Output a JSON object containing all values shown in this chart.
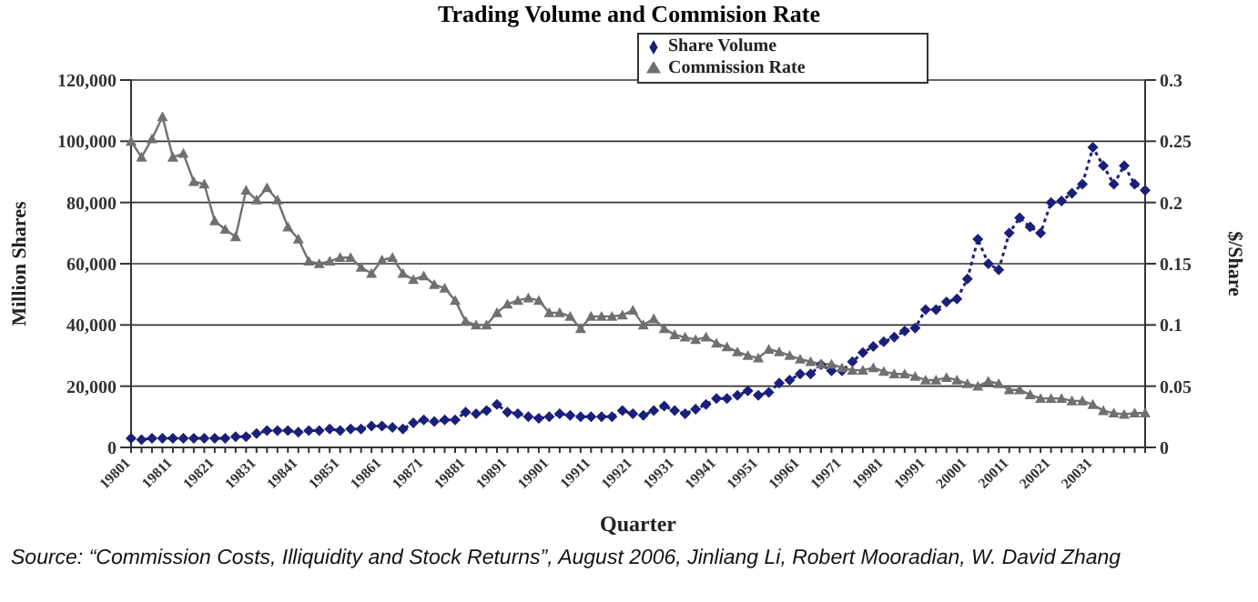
{
  "chart_data": {
    "type": "line",
    "title": "Trading Volume and Commision Rate",
    "xlabel": "Quarter",
    "ylabel": "Million Shares",
    "y2label": "$/Share",
    "categories": [
      "19801",
      null,
      null,
      null,
      "19811",
      null,
      null,
      null,
      "19821",
      null,
      null,
      null,
      "19831",
      null,
      null,
      null,
      "19841",
      null,
      null,
      null,
      "19851",
      null,
      null,
      null,
      "19861",
      null,
      null,
      null,
      "19871",
      null,
      null,
      null,
      "19881",
      null,
      null,
      null,
      "19891",
      null,
      null,
      null,
      "19901",
      null,
      null,
      null,
      "19911",
      null,
      null,
      null,
      "19921",
      null,
      null,
      null,
      "19931",
      null,
      null,
      null,
      "19941",
      null,
      null,
      null,
      "19951",
      null,
      null,
      null,
      "19961",
      null,
      null,
      null,
      "19971",
      null,
      null,
      null,
      "19981",
      null,
      null,
      null,
      "19991",
      null,
      null,
      null,
      "20001",
      null,
      null,
      null,
      "20011",
      null,
      null,
      null,
      "20021",
      null,
      null,
      null,
      "20031",
      null,
      null,
      null,
      null,
      null
    ],
    "series": [
      {
        "name": "Share Volume",
        "color": "#1a1f7a",
        "marker": "diamond",
        "line_style": "dotted",
        "values": [
          3000,
          2500,
          3000,
          3000,
          3000,
          3000,
          3000,
          3000,
          3000,
          3000,
          3500,
          3500,
          4500,
          5500,
          5500,
          5500,
          5000,
          5500,
          5500,
          6000,
          5500,
          6000,
          6000,
          7000,
          7000,
          6500,
          6000,
          8000,
          9000,
          8500,
          9000,
          9000,
          11500,
          11000,
          12000,
          14000,
          11500,
          11000,
          10000,
          9500,
          10000,
          11000,
          10500,
          10000,
          10000,
          10000,
          10000,
          12000,
          11000,
          10500,
          12000,
          13500,
          12000,
          11000,
          12500,
          14000,
          16000,
          16000,
          17000,
          18500,
          17000,
          18000,
          21000,
          22000,
          24000,
          24000,
          27000,
          25000,
          25000,
          28000,
          31000,
          33000,
          34500,
          36000,
          38000,
          39000,
          45000,
          45000,
          47500,
          48500,
          55000,
          68000,
          60000,
          58000,
          70000,
          75000,
          72000,
          70000,
          80000,
          80500,
          83000,
          86000,
          98000,
          92000,
          86000,
          92000,
          86000,
          84000
        ]
      },
      {
        "name": "Commission Rate",
        "color": "#707070",
        "marker": "triangle",
        "line_style": "solid",
        "axis": "y2",
        "values": [
          0.25,
          0.237,
          0.252,
          0.27,
          0.237,
          0.24,
          0.217,
          0.215,
          0.185,
          0.178,
          0.172,
          0.21,
          0.202,
          0.212,
          0.202,
          0.18,
          0.17,
          0.152,
          0.15,
          0.152,
          0.155,
          0.155,
          0.147,
          0.142,
          0.153,
          0.155,
          0.142,
          0.137,
          0.14,
          0.133,
          0.13,
          0.12,
          0.103,
          0.1,
          0.1,
          0.11,
          0.117,
          0.12,
          0.122,
          0.12,
          0.11,
          0.11,
          0.107,
          0.097,
          0.107,
          0.107,
          0.107,
          0.108,
          0.112,
          0.1,
          0.105,
          0.097,
          0.092,
          0.09,
          0.088,
          0.09,
          0.085,
          0.082,
          0.078,
          0.075,
          0.073,
          0.08,
          0.078,
          0.075,
          0.072,
          0.07,
          0.068,
          0.068,
          0.065,
          0.063,
          0.063,
          0.065,
          0.062,
          0.06,
          0.06,
          0.058,
          0.055,
          0.055,
          0.057,
          0.055,
          0.052,
          0.05,
          0.054,
          0.052,
          0.047,
          0.047,
          0.043,
          0.04,
          0.04,
          0.04,
          0.038,
          0.038,
          0.035,
          0.03,
          0.028,
          0.027,
          0.028,
          0.028
        ]
      }
    ],
    "ylim": [
      0,
      120000
    ],
    "yticks": [
      {
        "value": 0,
        "label": "0"
      },
      {
        "value": 20000,
        "label": "20,000"
      },
      {
        "value": 40000,
        "label": "40,000"
      },
      {
        "value": 60000,
        "label": "60,000"
      },
      {
        "value": 80000,
        "label": "80,000"
      },
      {
        "value": 100000,
        "label": "100,000"
      },
      {
        "value": 120000,
        "label": "120,000"
      }
    ],
    "y2lim": [
      0,
      0.3
    ],
    "y2ticks": [
      0,
      0.05,
      0.1,
      0.15,
      0.2,
      0.25,
      0.3
    ],
    "grid": "y",
    "legend": "top",
    "annotations": [
      "Source: “Commission Costs, Illiquidity and Stock Returns”, August 2006, Jinliang Li, Robert Mooradian, W. David Zhang"
    ]
  }
}
